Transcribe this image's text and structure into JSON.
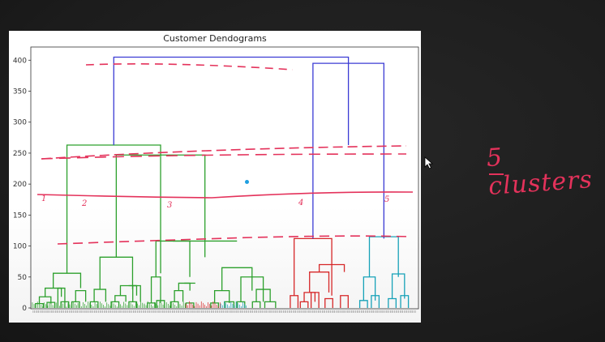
{
  "chart_data": {
    "type": "dendrogram",
    "title": "Customer Dendograms",
    "xlabel": "",
    "ylabel": "",
    "ylim": [
      0,
      420
    ],
    "yticks": [
      0,
      50,
      100,
      150,
      200,
      250,
      300,
      350,
      400
    ],
    "grid": false,
    "clusters": [
      {
        "color": "#2ca02c",
        "leaf_range": [
          1,
          60
        ]
      },
      {
        "color": "#2ca02c",
        "leaf_range": [
          60,
          146
        ]
      },
      {
        "color": "#2ca02c",
        "leaf_range": [
          146,
          200
        ]
      },
      {
        "color": "#d62728",
        "leaf_range": [
          200,
          245
        ]
      },
      {
        "color": "#17a2b8",
        "leaf_range": [
          245,
          280
        ]
      }
    ],
    "links": [
      {
        "c": "#2ca02c",
        "x1": 5,
        "x2": 15,
        "y1": 0,
        "y2": 7
      },
      {
        "c": "#2ca02c",
        "x1": 20,
        "x2": 30,
        "y1": 0,
        "y2": 9
      },
      {
        "c": "#2ca02c",
        "x1": 10,
        "x2": 25,
        "y1": 7,
        "y2": 18
      },
      {
        "c": "#2ca02c",
        "x1": 38,
        "x2": 48,
        "y1": 0,
        "y2": 10
      },
      {
        "c": "#2ca02c",
        "x1": 34,
        "x2": 43,
        "y1": 0,
        "y2": 32
      },
      {
        "c": "#2ca02c",
        "x1": 17.5,
        "x2": 38.5,
        "y1": 18,
        "y2": 32
      },
      {
        "c": "#2ca02c",
        "x1": 52,
        "x2": 62,
        "y1": 0,
        "y2": 10
      },
      {
        "c": "#2ca02c",
        "x1": 57,
        "x2": 70,
        "y1": 10,
        "y2": 28
      },
      {
        "c": "#2ca02c",
        "x1": 28,
        "x2": 63.5,
        "y1": 32,
        "y2": 56
      },
      {
        "c": "#2ca02c",
        "x1": 76,
        "x2": 86,
        "y1": 0,
        "y2": 10
      },
      {
        "c": "#2ca02c",
        "x1": 81,
        "x2": 96,
        "y1": 10,
        "y2": 30
      },
      {
        "c": "#2ca02c",
        "x1": 103,
        "x2": 113,
        "y1": 0,
        "y2": 10
      },
      {
        "c": "#2ca02c",
        "x1": 108,
        "x2": 122,
        "y1": 10,
        "y2": 20
      },
      {
        "c": "#2ca02c",
        "x1": 126,
        "x2": 136,
        "y1": 0,
        "y2": 10
      },
      {
        "c": "#2ca02c",
        "x1": 131,
        "x2": 141,
        "y1": 10,
        "y2": 36
      },
      {
        "c": "#2ca02c",
        "x1": 115,
        "x2": 136,
        "y1": 20,
        "y2": 36
      },
      {
        "c": "#2ca02c",
        "x1": 125.5,
        "x2": 136,
        "y1": 36,
        "y2": 36
      },
      {
        "c": "#2ca02c",
        "x1": 88.5,
        "x2": 130.75,
        "y1": 30,
        "y2": 82
      },
      {
        "c": "#2ca02c",
        "x1": 150,
        "x2": 160,
        "y1": 0,
        "y2": 8
      },
      {
        "c": "#2ca02c",
        "x1": 162,
        "x2": 172,
        "y1": 0,
        "y2": 12
      },
      {
        "c": "#2ca02c",
        "x1": 155,
        "x2": 167,
        "y1": 8,
        "y2": 50
      },
      {
        "c": "#2ca02c",
        "x1": 180,
        "x2": 190,
        "y1": 0,
        "y2": 10
      },
      {
        "c": "#2ca02c",
        "x1": 185,
        "x2": 196,
        "y1": 10,
        "y2": 28
      },
      {
        "c": "#2ca02c",
        "x1": 200,
        "x2": 210,
        "y1": 0,
        "y2": 8
      },
      {
        "c": "#2ca02c",
        "x1": 190.5,
        "x2": 205,
        "y1": 28,
        "y2": 40
      },
      {
        "c": "#2ca02c",
        "x1": 197.75,
        "x2": 212,
        "y1": 40,
        "y2": 40
      },
      {
        "c": "#2ca02c",
        "x1": 161,
        "x2": 204.875,
        "y1": 50,
        "y2": 108
      },
      {
        "c": "#2ca02c",
        "x1": 232,
        "x2": 242,
        "y1": 0,
        "y2": 8
      },
      {
        "c": "#2ca02c",
        "x1": 250,
        "x2": 262,
        "y1": 0,
        "y2": 10
      },
      {
        "c": "#2ca02c",
        "x1": 237,
        "x2": 256,
        "y1": 8,
        "y2": 28
      },
      {
        "c": "#2ca02c",
        "x1": 266,
        "x2": 276,
        "y1": 0,
        "y2": 10
      },
      {
        "c": "#2ca02c",
        "x1": 286,
        "x2": 296,
        "y1": 0,
        "y2": 10
      },
      {
        "c": "#2ca02c",
        "x1": 302,
        "x2": 316,
        "y1": 0,
        "y2": 10
      },
      {
        "c": "#2ca02c",
        "x1": 291,
        "x2": 309,
        "y1": 10,
        "y2": 30
      },
      {
        "c": "#2ca02c",
        "x1": 271,
        "x2": 300,
        "y1": 10,
        "y2": 50
      },
      {
        "c": "#2ca02c",
        "x1": 246.5,
        "x2": 285.5,
        "y1": 28,
        "y2": 65
      },
      {
        "c": "#2ca02c",
        "x1": 182.9375,
        "x2": 266,
        "y1": 108,
        "y2": 108
      },
      {
        "c": "#2ca02c",
        "x1": 109.625,
        "x2": 224.4688,
        "y1": 82,
        "y2": 247
      },
      {
        "c": "#2ca02c",
        "x1": 45.75,
        "x2": 167.0469,
        "y1": 56,
        "y2": 263
      },
      {
        "c": "#d62728",
        "x1": 335,
        "x2": 345,
        "y1": 0,
        "y2": 20
      },
      {
        "c": "#d62728",
        "x1": 348,
        "x2": 358,
        "y1": 0,
        "y2": 10
      },
      {
        "c": "#d62728",
        "x1": 362,
        "x2": 372,
        "y1": 0,
        "y2": 25
      },
      {
        "c": "#d62728",
        "x1": 353,
        "x2": 367,
        "y1": 10,
        "y2": 25
      },
      {
        "c": "#d62728",
        "x1": 380,
        "x2": 390,
        "y1": 0,
        "y2": 15
      },
      {
        "c": "#d62728",
        "x1": 360,
        "x2": 385,
        "y1": 25,
        "y2": 58
      },
      {
        "c": "#d62728",
        "x1": 400,
        "x2": 410,
        "y1": 0,
        "y2": 20
      },
      {
        "c": "#d62728",
        "x1": 372.5,
        "x2": 405,
        "y1": 58,
        "y2": 70
      },
      {
        "c": "#d62728",
        "x1": 340,
        "x2": 388.75,
        "y1": 20,
        "y2": 112
      },
      {
        "c": "#17a2b8",
        "x1": 425,
        "x2": 435,
        "y1": 0,
        "y2": 12
      },
      {
        "c": "#17a2b8",
        "x1": 440,
        "x2": 450,
        "y1": 0,
        "y2": 20
      },
      {
        "c": "#17a2b8",
        "x1": 430,
        "x2": 445,
        "y1": 12,
        "y2": 50
      },
      {
        "c": "#17a2b8",
        "x1": 462,
        "x2": 472,
        "y1": 0,
        "y2": 15
      },
      {
        "c": "#17a2b8",
        "x1": 478,
        "x2": 488,
        "y1": 0,
        "y2": 20
      },
      {
        "c": "#17a2b8",
        "x1": 467,
        "x2": 483,
        "y1": 15,
        "y2": 55
      },
      {
        "c": "#17a2b8",
        "x1": 437.5,
        "x2": 475,
        "y1": 50,
        "y2": 115
      },
      {
        "c": "#3b3bd4",
        "x1": 364.375,
        "x2": 456.25,
        "y1": 112,
        "y2": 395
      },
      {
        "c": "#3b3bd4",
        "x1": 106.4,
        "x2": 410.3,
        "y1": 263,
        "y2": 405
      }
    ],
    "annotation": "5 clusters",
    "marks": [
      "1",
      "2",
      "3",
      "4",
      "5"
    ]
  }
}
